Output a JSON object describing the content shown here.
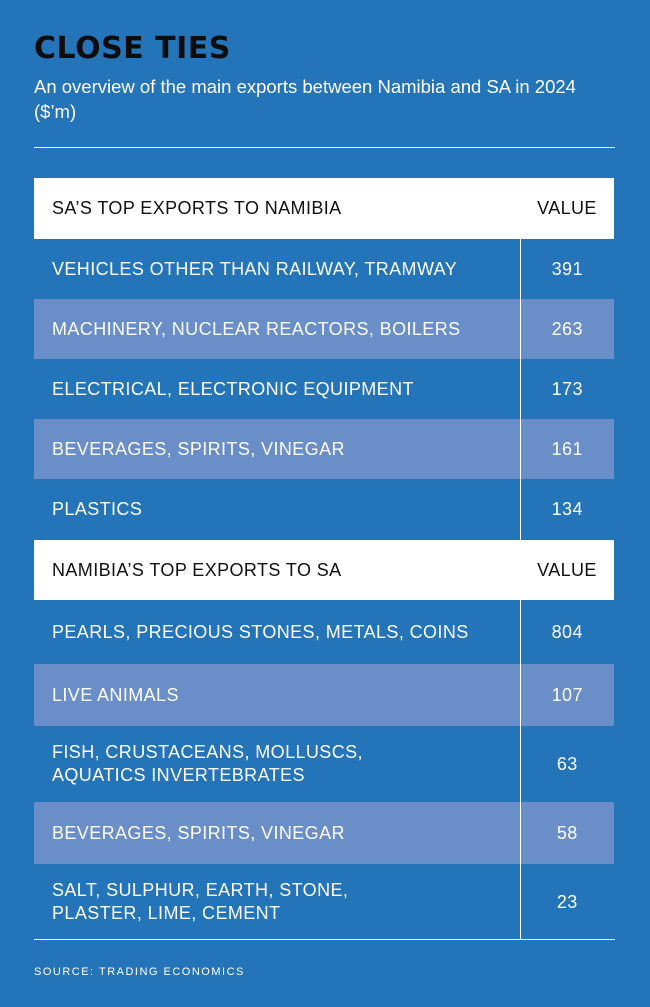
{
  "header": {
    "title": "CLOSE TIES",
    "subtitle": "An overview of the main exports between Namibia and SA in 2024 ($’m)"
  },
  "chart_data": {
    "type": "table",
    "unit": "$’m",
    "sections": [
      {
        "heading": "SA’S TOP EXPORTS TO NAMIBIA",
        "value_heading": "VALUE",
        "rows": [
          {
            "category": "VEHICLES OTHER THAN RAILWAY, TRAMWAY",
            "value": 391
          },
          {
            "category": "MACHINERY, NUCLEAR REACTORS, BOILERS",
            "value": 263
          },
          {
            "category": "ELECTRICAL, ELECTRONIC EQUIPMENT",
            "value": 173
          },
          {
            "category": "BEVERAGES, SPIRITS, VINEGAR",
            "value": 161
          },
          {
            "category": "PLASTICS",
            "value": 134
          }
        ]
      },
      {
        "heading": "NAMIBIA’S TOP EXPORTS TO SA",
        "value_heading": "VALUE",
        "rows": [
          {
            "category": "PEARLS, PRECIOUS STONES, METALS, COINS",
            "value": 804
          },
          {
            "category": "LIVE ANIMALS",
            "value": 107
          },
          {
            "category": "FISH, CRUSTACEANS, MOLLUSCS,\nAQUATICS INVERTEBRATES",
            "value": 63
          },
          {
            "category": "BEVERAGES, SPIRITS, VINEGAR",
            "value": 58
          },
          {
            "category": "SALT, SULPHUR, EARTH, STONE,\nPLASTER, LIME, CEMENT",
            "value": 23
          }
        ]
      }
    ]
  },
  "footer": {
    "source": "SOURCE: TRADING ECONOMICS"
  }
}
